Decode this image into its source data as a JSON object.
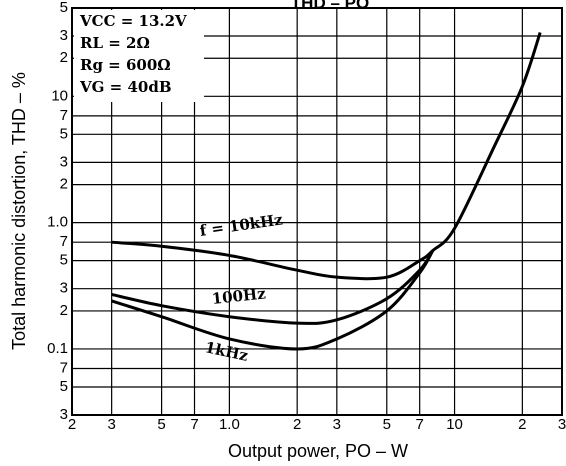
{
  "chart_data": {
    "type": "line",
    "title": "THD – PO",
    "x_label": "Output power, PO – W",
    "y_label": "Total harmonic distortion, THD – %",
    "log_x": true,
    "log_y": true,
    "grid": true,
    "xlim": [
      0.2,
      30
    ],
    "ylim": [
      0.03,
      50
    ],
    "xticks": [
      {
        "value": 0.2,
        "label": "2"
      },
      {
        "value": 0.3,
        "label": "3"
      },
      {
        "value": 0.5,
        "label": "5"
      },
      {
        "value": 0.7,
        "label": "7"
      },
      {
        "value": 1,
        "label": "1.0"
      },
      2,
      3,
      5,
      7,
      10,
      {
        "value": 20,
        "label": "2"
      },
      {
        "value": 30,
        "label": "3"
      }
    ],
    "yticks": [
      {
        "value": 0.03,
        "label": "3"
      },
      {
        "value": 0.05,
        "label": "5"
      },
      {
        "value": 0.07,
        "label": "7"
      },
      0.1,
      {
        "value": 0.2,
        "label": "2"
      },
      {
        "value": 0.3,
        "label": "3"
      },
      {
        "value": 0.5,
        "label": "5"
      },
      {
        "value": 0.7,
        "label": "7"
      },
      {
        "value": 1,
        "label": "1.0"
      },
      {
        "value": 2,
        "label": "2"
      },
      {
        "value": 3,
        "label": "3"
      },
      {
        "value": 5,
        "label": "5"
      },
      {
        "value": 7,
        "label": "7"
      },
      10,
      {
        "value": 20,
        "label": "2"
      },
      {
        "value": 30,
        "label": "3"
      },
      {
        "value": 50,
        "label": "5"
      }
    ],
    "conditions": [
      "VCC = 13.2V",
      "RL = 2Ω",
      "Rg = 600Ω",
      "VG = 40dB"
    ],
    "series": [
      {
        "name": "f = 10kHz",
        "color": "#000000",
        "x": [
          0.3,
          0.5,
          1,
          2,
          3,
          5,
          7,
          8,
          10,
          15,
          20,
          24
        ],
        "values": [
          0.7,
          0.65,
          0.55,
          0.42,
          0.37,
          0.37,
          0.5,
          0.6,
          0.9,
          4,
          12,
          32
        ]
      },
      {
        "name": "100Hz",
        "color": "#000000",
        "x": [
          0.3,
          0.5,
          1,
          2,
          3,
          5,
          7,
          8
        ],
        "values": [
          0.27,
          0.22,
          0.18,
          0.16,
          0.17,
          0.25,
          0.42,
          0.6
        ]
      },
      {
        "name": "1kHz",
        "color": "#000000",
        "x": [
          0.3,
          0.5,
          1,
          2,
          3,
          5,
          7,
          8
        ],
        "values": [
          0.24,
          0.18,
          0.12,
          0.1,
          0.12,
          0.2,
          0.4,
          0.6
        ]
      }
    ]
  }
}
